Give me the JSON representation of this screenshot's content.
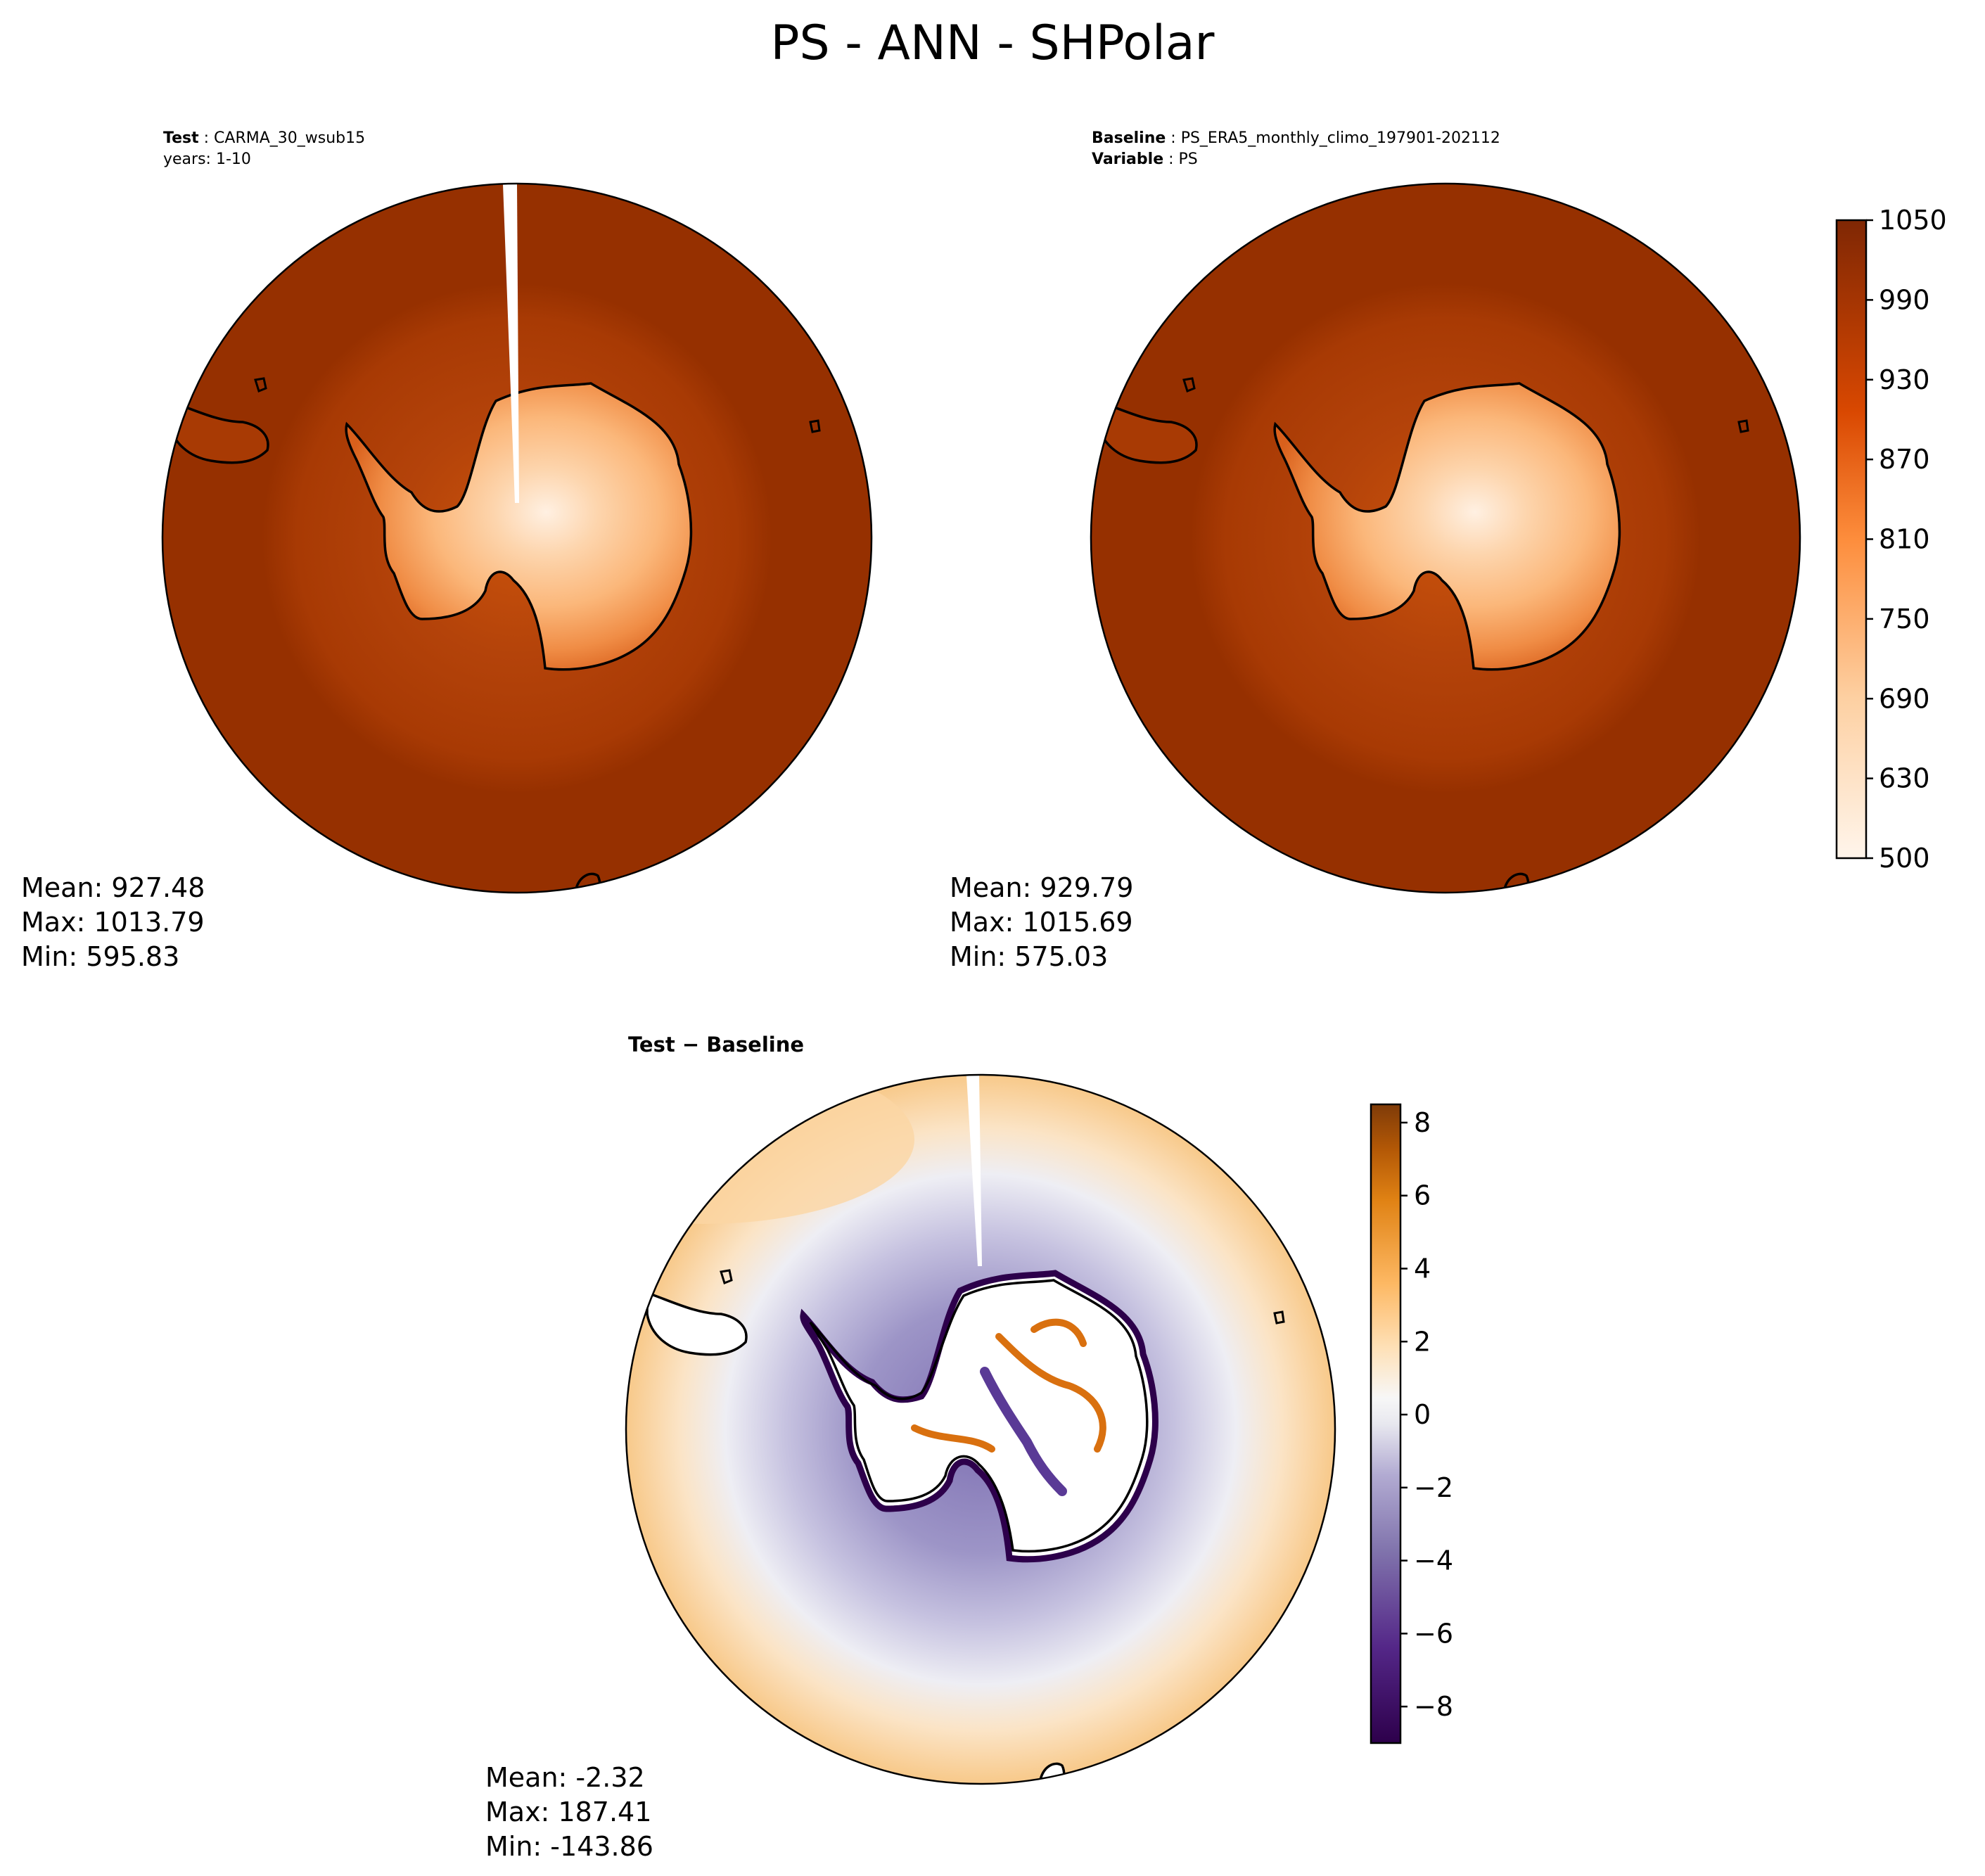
{
  "figure": {
    "title": "PS - ANN - SHPolar"
  },
  "test": {
    "label": "Test",
    "name": "CARMA_30_wsub15",
    "years": "years: 1-10",
    "stats": {
      "mean": "Mean: 927.48",
      "max": "Max: 1013.79",
      "min": "Min: 595.83"
    }
  },
  "baseline": {
    "label": "Baseline",
    "name": "PS_ERA5_monthly_climo_197901-202112",
    "variable_label": "Variable",
    "variable": "PS",
    "stats": {
      "mean": "Mean: 929.79",
      "max": "Max: 1015.69",
      "min": "Min: 575.03"
    }
  },
  "diff": {
    "title": "Test − Baseline",
    "stats": {
      "mean": "Mean: -2.32",
      "max": "Max: 187.41",
      "min": "Min: -143.86"
    }
  },
  "colors": {
    "ocean_far": "#963000",
    "ocean_mid": "#a83a04",
    "diff_purple": "#b4b1d6",
    "diff_orange": "#f8c98a"
  },
  "chart_data": [
    {
      "type": "heatmap",
      "panel": "test",
      "projection": "south-polar-stereographic",
      "colormap": "Oranges",
      "colorbar_ticks": [
        "500",
        "630",
        "690",
        "750",
        "810",
        "870",
        "930",
        "990",
        "1050"
      ],
      "colorbar_levels": [
        500,
        600,
        630,
        660,
        690,
        720,
        750,
        780,
        810,
        840,
        870,
        900,
        930,
        960,
        990,
        1020,
        1050
      ],
      "mean": 927.48,
      "max": 1013.79,
      "min": 595.83
    },
    {
      "type": "heatmap",
      "panel": "baseline",
      "projection": "south-polar-stereographic",
      "colormap": "Oranges",
      "colorbar_ticks": [
        "500",
        "630",
        "690",
        "750",
        "810",
        "870",
        "930",
        "990",
        "1050"
      ],
      "mean": 929.79,
      "max": 1015.69,
      "min": 575.03
    },
    {
      "type": "heatmap",
      "panel": "difference",
      "projection": "south-polar-stereographic",
      "colormap": "PuOr_r",
      "colorbar_ticks": [
        "8",
        "6",
        "4",
        "2",
        "0",
        "−2",
        "−4",
        "−6",
        "−8"
      ],
      "colorbar_range": [
        -9,
        8.5
      ],
      "mean": -2.32,
      "max": 187.41,
      "min": -143.86
    }
  ]
}
